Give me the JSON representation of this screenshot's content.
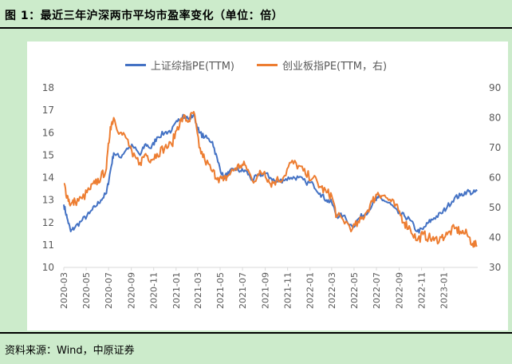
{
  "header": {
    "title": "图 1：最近三年沪深两市平均市盈率变化（单位：倍）"
  },
  "footer": {
    "source": "资料来源：Wind，中原证券"
  },
  "colors": {
    "series1": "#4472c4",
    "series2": "#ed7d31"
  },
  "chart_data": {
    "type": "line",
    "title": "",
    "xlabel": "",
    "ylabel": "",
    "y2label": "",
    "x_tick_labels": [
      "2020-03",
      "2020-05",
      "2020-07",
      "2020-09",
      "2020-11",
      "2021-01",
      "2021-03",
      "2021-05",
      "2021-07",
      "2021-09",
      "2021-11",
      "2022-01",
      "2022-03",
      "2022-05",
      "2022-07",
      "2022-09",
      "2022-11",
      "2023-01"
    ],
    "ylim": [
      10,
      18
    ],
    "y_ticks": [
      "10",
      "11",
      "12",
      "13",
      "14",
      "15",
      "16",
      "17",
      "18"
    ],
    "y2lim": [
      30,
      90
    ],
    "y2_ticks": [
      "30",
      "40",
      "50",
      "60",
      "70",
      "80",
      "90"
    ],
    "legend_position": "top-center",
    "grid": false,
    "series": [
      {
        "name": "上证综指PE(TTM)",
        "axis": "left",
        "points": [
          [
            "2020-03-01",
            12.8
          ],
          [
            "2020-03-10",
            12.2
          ],
          [
            "2020-03-20",
            11.6
          ],
          [
            "2020-04-01",
            11.8
          ],
          [
            "2020-04-20",
            12.1
          ],
          [
            "2020-05-10",
            12.4
          ],
          [
            "2020-05-25",
            12.7
          ],
          [
            "2020-06-10",
            13.0
          ],
          [
            "2020-06-25",
            13.3
          ],
          [
            "2020-07-06",
            14.3
          ],
          [
            "2020-07-15",
            15.1
          ],
          [
            "2020-08-01",
            14.9
          ],
          [
            "2020-08-20",
            15.3
          ],
          [
            "2020-09-05",
            15.4
          ],
          [
            "2020-09-25",
            15.0
          ],
          [
            "2020-10-10",
            15.5
          ],
          [
            "2020-10-25",
            15.3
          ],
          [
            "2020-11-10",
            15.8
          ],
          [
            "2020-12-01",
            16.0
          ],
          [
            "2020-12-20",
            16.1
          ],
          [
            "2021-01-05",
            16.5
          ],
          [
            "2021-01-20",
            16.8
          ],
          [
            "2021-02-05",
            16.6
          ],
          [
            "2021-02-18",
            16.8
          ],
          [
            "2021-03-05",
            16.0
          ],
          [
            "2021-03-20",
            15.8
          ],
          [
            "2021-04-10",
            15.6
          ],
          [
            "2021-04-25",
            14.7
          ],
          [
            "2021-05-10",
            14.0
          ],
          [
            "2021-05-25",
            14.2
          ],
          [
            "2021-06-10",
            14.4
          ],
          [
            "2021-06-25",
            14.3
          ],
          [
            "2021-07-10",
            14.3
          ],
          [
            "2021-07-28",
            13.9
          ],
          [
            "2021-08-15",
            14.1
          ],
          [
            "2021-08-30",
            14.2
          ],
          [
            "2021-09-15",
            14.0
          ],
          [
            "2021-10-01",
            13.8
          ],
          [
            "2021-10-20",
            13.9
          ],
          [
            "2021-11-10",
            14.0
          ],
          [
            "2021-12-01",
            14.0
          ],
          [
            "2021-12-20",
            13.8
          ],
          [
            "2022-01-10",
            13.7
          ],
          [
            "2022-01-28",
            13.3
          ],
          [
            "2022-02-15",
            13.0
          ],
          [
            "2022-03-01",
            12.9
          ],
          [
            "2022-03-15",
            12.3
          ],
          [
            "2022-04-01",
            12.3
          ],
          [
            "2022-04-27",
            11.8
          ],
          [
            "2022-05-15",
            12.2
          ],
          [
            "2022-06-01",
            12.4
          ],
          [
            "2022-06-20",
            12.8
          ],
          [
            "2022-07-05",
            13.1
          ],
          [
            "2022-07-20",
            13.0
          ],
          [
            "2022-08-10",
            12.8
          ],
          [
            "2022-08-30",
            12.4
          ],
          [
            "2022-09-15",
            12.3
          ],
          [
            "2022-10-01",
            12.1
          ],
          [
            "2022-10-20",
            11.6
          ],
          [
            "2022-11-05",
            11.7
          ],
          [
            "2022-11-20",
            12.0
          ],
          [
            "2022-12-05",
            12.2
          ],
          [
            "2022-12-25",
            12.4
          ],
          [
            "2023-01-10",
            12.7
          ],
          [
            "2023-01-30",
            13.1
          ],
          [
            "2023-02-15",
            13.2
          ],
          [
            "2023-03-05",
            13.4
          ],
          [
            "2023-03-20",
            13.3
          ],
          [
            "2023-04-01",
            13.4
          ]
        ]
      },
      {
        "name": "创业板指PE(TTM，右)",
        "axis": "right",
        "points": [
          [
            "2020-03-01",
            58
          ],
          [
            "2020-03-10",
            54
          ],
          [
            "2020-03-20",
            51
          ],
          [
            "2020-04-01",
            52
          ],
          [
            "2020-04-20",
            53
          ],
          [
            "2020-05-10",
            56
          ],
          [
            "2020-05-25",
            58
          ],
          [
            "2020-06-10",
            60
          ],
          [
            "2020-06-25",
            63
          ],
          [
            "2020-07-06",
            77
          ],
          [
            "2020-07-15",
            80
          ],
          [
            "2020-08-01",
            75
          ],
          [
            "2020-08-20",
            73
          ],
          [
            "2020-09-05",
            67
          ],
          [
            "2020-09-25",
            65
          ],
          [
            "2020-10-10",
            68
          ],
          [
            "2020-10-25",
            66
          ],
          [
            "2020-11-10",
            68
          ],
          [
            "2020-12-01",
            70
          ],
          [
            "2020-12-20",
            71
          ],
          [
            "2021-01-05",
            77
          ],
          [
            "2021-01-20",
            80
          ],
          [
            "2021-02-05",
            79
          ],
          [
            "2021-02-18",
            82
          ],
          [
            "2021-03-05",
            70
          ],
          [
            "2021-03-20",
            66
          ],
          [
            "2021-04-10",
            62
          ],
          [
            "2021-04-25",
            60
          ],
          [
            "2021-05-10",
            59
          ],
          [
            "2021-05-25",
            61
          ],
          [
            "2021-06-10",
            63
          ],
          [
            "2021-06-25",
            64
          ],
          [
            "2021-07-10",
            64
          ],
          [
            "2021-07-28",
            59
          ],
          [
            "2021-08-15",
            61
          ],
          [
            "2021-08-30",
            62
          ],
          [
            "2021-09-15",
            58
          ],
          [
            "2021-10-01",
            59
          ],
          [
            "2021-10-20",
            60
          ],
          [
            "2021-11-10",
            65
          ],
          [
            "2021-12-01",
            64
          ],
          [
            "2021-12-20",
            61
          ],
          [
            "2022-01-10",
            60
          ],
          [
            "2022-01-28",
            57
          ],
          [
            "2022-02-15",
            55
          ],
          [
            "2022-03-01",
            54
          ],
          [
            "2022-03-15",
            47
          ],
          [
            "2022-04-01",
            46
          ],
          [
            "2022-04-27",
            43
          ],
          [
            "2022-05-15",
            45
          ],
          [
            "2022-06-01",
            48
          ],
          [
            "2022-06-20",
            52
          ],
          [
            "2022-07-05",
            55
          ],
          [
            "2022-07-20",
            54
          ],
          [
            "2022-08-10",
            52
          ],
          [
            "2022-08-30",
            49
          ],
          [
            "2022-09-15",
            45
          ],
          [
            "2022-10-01",
            43
          ],
          [
            "2022-10-20",
            39
          ],
          [
            "2022-11-05",
            41
          ],
          [
            "2022-11-20",
            40
          ],
          [
            "2022-12-05",
            39
          ],
          [
            "2022-12-25",
            40
          ],
          [
            "2023-01-10",
            41
          ],
          [
            "2023-01-30",
            43
          ],
          [
            "2023-02-15",
            42
          ],
          [
            "2023-03-05",
            41
          ],
          [
            "2023-03-20",
            38
          ],
          [
            "2023-04-01",
            37
          ]
        ]
      }
    ]
  }
}
